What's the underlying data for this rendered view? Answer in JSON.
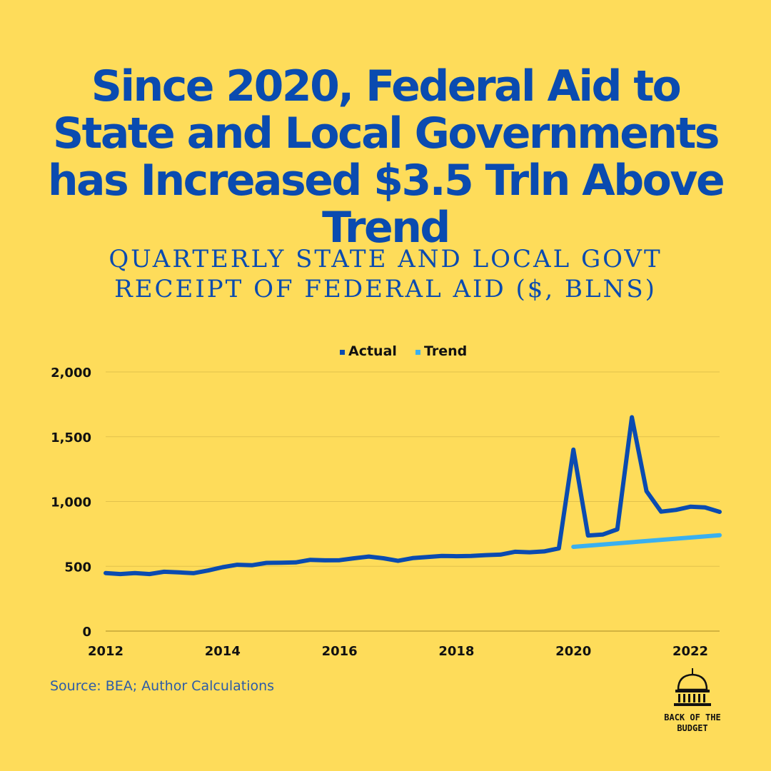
{
  "title": "Since 2020, Federal Aid to State and Local Governments has Increased $3.5 Trln Above Trend",
  "subtitle_lines": [
    "QUARTERLY STATE AND LOCAL GOVT",
    "RECEIPT OF FEDERAL AID ($, BLNS)"
  ],
  "source": "Source: BEA; Author Calculations",
  "logo": {
    "icon": "capitol-dome-icon",
    "line1": "BACK OF THE",
    "line2": "BUDGET"
  },
  "colors": {
    "background": "#FEDC5A",
    "actual": "#0A4BB0",
    "trend": "#3AB0F0",
    "text": "#0A4BB0"
  },
  "chart_data": {
    "type": "line",
    "xlim": [
      2012,
      2022.5
    ],
    "ylim": [
      0,
      2000
    ],
    "yticks": [
      0,
      500,
      1000,
      1500,
      2000
    ],
    "ytick_labels": [
      "0",
      "500",
      "1,000",
      "1,500",
      "2,000"
    ],
    "xticks": [
      2012,
      2014,
      2016,
      2018,
      2020,
      2022
    ],
    "xtick_labels": [
      "2012",
      "2014",
      "2016",
      "2018",
      "2020",
      "2022"
    ],
    "grid": "horizontal",
    "legend_position": "top-center",
    "series": [
      {
        "name": "Actual",
        "x": [
          2012.0,
          2012.25,
          2012.5,
          2012.75,
          2013.0,
          2013.25,
          2013.5,
          2013.75,
          2014.0,
          2014.25,
          2014.5,
          2014.75,
          2015.0,
          2015.25,
          2015.5,
          2015.75,
          2016.0,
          2016.25,
          2016.5,
          2016.75,
          2017.0,
          2017.25,
          2017.5,
          2017.75,
          2018.0,
          2018.25,
          2018.5,
          2018.75,
          2019.0,
          2019.25,
          2019.5,
          2019.75,
          2020.0,
          2020.25,
          2020.5,
          2020.75,
          2021.0,
          2021.25,
          2021.5,
          2021.75,
          2022.0,
          2022.25,
          2022.5
        ],
        "values": [
          448,
          440,
          448,
          440,
          458,
          453,
          447,
          467,
          493,
          512,
          508,
          526,
          528,
          530,
          550,
          546,
          547,
          562,
          575,
          562,
          542,
          563,
          572,
          580,
          578,
          580,
          586,
          590,
          612,
          608,
          615,
          638,
          1400,
          738,
          745,
          785,
          1650,
          1080,
          922,
          935,
          960,
          955,
          920
        ]
      },
      {
        "name": "Trend",
        "x": [
          2020.0,
          2022.5
        ],
        "values": [
          650,
          740
        ]
      }
    ]
  }
}
